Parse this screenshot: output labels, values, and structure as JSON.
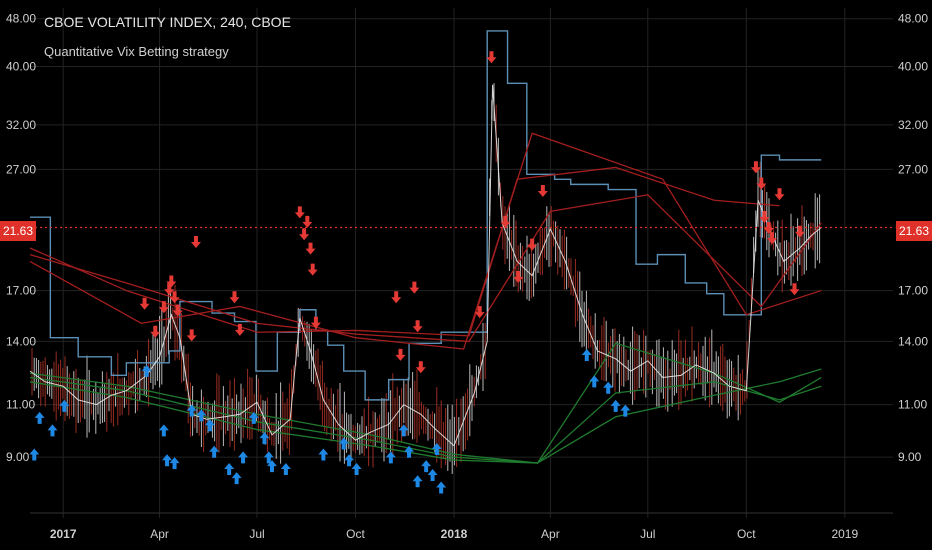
{
  "header": {
    "title": "CBOE VOLATILITY INDEX, 240, CBOE",
    "subtitle": "Quantitative Vix Betting strategy"
  },
  "colors": {
    "background": "#000000",
    "grid": "#222222",
    "candle_up": "#e8e8e8",
    "candle_down": "#c0392b",
    "buy_arrow": "#1e88e5",
    "sell_arrow": "#e53935",
    "step_line": "#5b8fb5",
    "ma_red": "#a31e1e",
    "ma_green": "#1f7a2e",
    "current_price_line": "#e0302a"
  },
  "current_price": {
    "value": 21.63,
    "label": "21.63"
  },
  "chart_data": {
    "type": "line",
    "y_scale": "log",
    "ylim": [
      8.0,
      50.0
    ],
    "y_ticks": [
      {
        "value": 9.0,
        "label": "9.00"
      },
      {
        "value": 11.0,
        "label": "11.00"
      },
      {
        "value": 14.0,
        "label": "14.00"
      },
      {
        "value": 17.0,
        "label": "17.00"
      },
      {
        "value": 21.63,
        "label": "21.63"
      },
      {
        "value": 27.0,
        "label": "27.00"
      },
      {
        "value": 32.0,
        "label": "32.00"
      },
      {
        "value": 40.0,
        "label": "40.00"
      },
      {
        "value": 48.0,
        "label": "48.00"
      }
    ],
    "xlim": [
      "2016-12-01",
      "2019-02-15"
    ],
    "x_ticks": [
      {
        "date": "2017-01-01",
        "label": "2017",
        "bold": true
      },
      {
        "date": "2017-04-01",
        "label": "Apr",
        "bold": false
      },
      {
        "date": "2017-07-01",
        "label": "Jul",
        "bold": false
      },
      {
        "date": "2017-10-01",
        "label": "Oct",
        "bold": false
      },
      {
        "date": "2018-01-01",
        "label": "2018",
        "bold": true
      },
      {
        "date": "2018-04-01",
        "label": "Apr",
        "bold": false
      },
      {
        "date": "2018-07-01",
        "label": "Jul",
        "bold": false
      },
      {
        "date": "2018-10-01",
        "label": "Oct",
        "bold": false
      },
      {
        "date": "2019-01-01",
        "label": "2019",
        "bold": false
      }
    ],
    "series": [
      {
        "kind": "price",
        "x": [
          "2016-12-01",
          "2016-12-15",
          "2017-01-01",
          "2017-01-15",
          "2017-02-01",
          "2017-02-15",
          "2017-03-01",
          "2017-03-20",
          "2017-04-01",
          "2017-04-12",
          "2017-04-20",
          "2017-05-01",
          "2017-05-15",
          "2017-06-01",
          "2017-06-15",
          "2017-07-01",
          "2017-07-15",
          "2017-08-01",
          "2017-08-10",
          "2017-08-20",
          "2017-09-01",
          "2017-09-15",
          "2017-10-01",
          "2017-10-15",
          "2017-11-01",
          "2017-11-15",
          "2017-12-01",
          "2017-12-15",
          "2018-01-01",
          "2018-01-20",
          "2018-02-01",
          "2018-02-06",
          "2018-02-15",
          "2018-03-01",
          "2018-03-15",
          "2018-04-01",
          "2018-04-15",
          "2018-05-01",
          "2018-05-15",
          "2018-06-01",
          "2018-06-15",
          "2018-07-01",
          "2018-07-15",
          "2018-08-01",
          "2018-08-15",
          "2018-09-01",
          "2018-09-15",
          "2018-10-01",
          "2018-10-12",
          "2018-10-25",
          "2018-11-05",
          "2018-11-20",
          "2018-12-01",
          "2018-12-10"
        ],
        "values": [
          12.5,
          12.0,
          11.8,
          11.2,
          11.0,
          11.4,
          11.6,
          12.3,
          13.2,
          15.5,
          14.2,
          10.6,
          10.4,
          10.5,
          10.6,
          11.1,
          9.8,
          10.4,
          15.3,
          13.5,
          11.2,
          10.2,
          9.6,
          9.9,
          10.2,
          11.0,
          10.6,
          10.0,
          9.4,
          11.5,
          14.0,
          37.3,
          22.0,
          19.0,
          18.0,
          21.5,
          19.0,
          15.5,
          13.5,
          13.1,
          12.5,
          13.0,
          12.2,
          12.3,
          12.8,
          12.4,
          11.8,
          11.6,
          24.0,
          21.0,
          19.0,
          20.0,
          21.0,
          21.63
        ]
      },
      {
        "kind": "step",
        "x": [
          "2016-12-01",
          "2016-12-20",
          "2017-01-15",
          "2017-02-15",
          "2017-03-01",
          "2017-04-10",
          "2017-04-20",
          "2017-05-20",
          "2017-06-10",
          "2017-06-30",
          "2017-07-20",
          "2017-08-10",
          "2017-08-25",
          "2017-09-05",
          "2017-09-20",
          "2017-10-10",
          "2017-11-01",
          "2017-11-20",
          "2017-12-20",
          "2018-01-15",
          "2018-02-01",
          "2018-02-20",
          "2018-03-10",
          "2018-04-05",
          "2018-04-20",
          "2018-05-10",
          "2018-05-25",
          "2018-06-20",
          "2018-07-10",
          "2018-08-05",
          "2018-08-25",
          "2018-09-10",
          "2018-09-30",
          "2018-10-15",
          "2018-11-01",
          "2018-12-10"
        ],
        "values": [
          22.5,
          14.2,
          13.2,
          12.3,
          12.9,
          13.5,
          16.3,
          15.6,
          15.1,
          12.5,
          14.5,
          15.8,
          14.6,
          13.8,
          12.5,
          11.2,
          12.1,
          13.9,
          14.5,
          14.5,
          45.8,
          37.5,
          26.5,
          26.0,
          25.5,
          25.5,
          25.0,
          18.8,
          19.5,
          17.5,
          16.8,
          15.5,
          15.5,
          28.5,
          28.0,
          28.0
        ]
      },
      {
        "kind": "ma_red",
        "x": [
          "2016-12-01",
          "2017-03-01",
          "2017-07-01",
          "2017-10-01",
          "2018-01-15",
          "2018-03-01",
          "2018-06-01",
          "2018-09-01",
          "2018-11-01"
        ],
        "values": [
          20.0,
          17.0,
          14.5,
          14.6,
          14.3,
          26.0,
          27.2,
          24.0,
          23.5
        ]
      },
      {
        "kind": "ma_red",
        "x": [
          "2016-12-01",
          "2017-03-01",
          "2017-07-01",
          "2017-10-01",
          "2018-01-15",
          "2018-04-01",
          "2018-07-01",
          "2018-10-15",
          "2018-12-10"
        ],
        "values": [
          19.5,
          17.5,
          15.0,
          14.4,
          14.0,
          23.0,
          24.5,
          16.0,
          22.0
        ]
      },
      {
        "kind": "ma_red",
        "x": [
          "2016-12-01",
          "2017-03-15",
          "2017-06-15",
          "2017-10-01",
          "2018-01-10",
          "2018-03-15",
          "2018-07-15",
          "2018-10-01",
          "2018-12-10"
        ],
        "values": [
          19.0,
          15.0,
          16.0,
          14.2,
          13.6,
          31.0,
          26.0,
          15.5,
          17.0
        ]
      },
      {
        "kind": "ma_green",
        "x": [
          "2016-12-01",
          "2017-03-01",
          "2017-07-01",
          "2017-10-15",
          "2018-01-01",
          "2018-03-20",
          "2018-06-01",
          "2018-09-01",
          "2018-11-01",
          "2018-12-10"
        ],
        "values": [
          12.4,
          11.8,
          10.6,
          9.8,
          9.1,
          8.8,
          13.9,
          12.4,
          11.1,
          12.2
        ]
      },
      {
        "kind": "ma_green",
        "x": [
          "2016-12-01",
          "2017-03-01",
          "2017-07-01",
          "2017-10-15",
          "2018-01-01",
          "2018-03-20",
          "2018-06-01",
          "2018-09-01",
          "2018-11-01",
          "2018-12-10"
        ],
        "values": [
          12.2,
          11.6,
          10.3,
          9.6,
          9.0,
          8.8,
          11.5,
          12.0,
          11.2,
          11.8
        ]
      },
      {
        "kind": "ma_green",
        "x": [
          "2016-12-01",
          "2017-03-01",
          "2017-07-01",
          "2017-10-15",
          "2018-01-01",
          "2018-03-20",
          "2018-06-01",
          "2018-09-01",
          "2018-11-01",
          "2018-12-10"
        ],
        "values": [
          12.0,
          11.3,
          10.0,
          9.4,
          8.9,
          8.8,
          10.5,
          11.4,
          12.0,
          12.6
        ]
      }
    ],
    "buy_signals": [
      {
        "x": "2016-12-05",
        "y": 9.3
      },
      {
        "x": "2016-12-10",
        "y": 10.7
      },
      {
        "x": "2016-12-22",
        "y": 10.2
      },
      {
        "x": "2017-01-02",
        "y": 11.2
      },
      {
        "x": "2017-03-20",
        "y": 12.8
      },
      {
        "x": "2017-04-05",
        "y": 10.2
      },
      {
        "x": "2017-04-08",
        "y": 9.1
      },
      {
        "x": "2017-04-15",
        "y": 9.0
      },
      {
        "x": "2017-05-01",
        "y": 11.0
      },
      {
        "x": "2017-05-10",
        "y": 10.8
      },
      {
        "x": "2017-05-18",
        "y": 10.4
      },
      {
        "x": "2017-05-22",
        "y": 9.4
      },
      {
        "x": "2017-06-05",
        "y": 8.8
      },
      {
        "x": "2017-06-12",
        "y": 8.5
      },
      {
        "x": "2017-06-18",
        "y": 9.2
      },
      {
        "x": "2017-06-28",
        "y": 10.7
      },
      {
        "x": "2017-07-08",
        "y": 9.9
      },
      {
        "x": "2017-07-12",
        "y": 9.2
      },
      {
        "x": "2017-07-15",
        "y": 8.9
      },
      {
        "x": "2017-07-28",
        "y": 8.8
      },
      {
        "x": "2017-09-01",
        "y": 9.3
      },
      {
        "x": "2017-09-20",
        "y": 9.7
      },
      {
        "x": "2017-09-25",
        "y": 9.1
      },
      {
        "x": "2017-10-02",
        "y": 8.8
      },
      {
        "x": "2017-11-03",
        "y": 9.2
      },
      {
        "x": "2017-11-15",
        "y": 10.2
      },
      {
        "x": "2017-11-20",
        "y": 9.4
      },
      {
        "x": "2017-11-28",
        "y": 8.4
      },
      {
        "x": "2017-12-06",
        "y": 8.9
      },
      {
        "x": "2017-12-12",
        "y": 8.6
      },
      {
        "x": "2017-12-16",
        "y": 9.5
      },
      {
        "x": "2017-12-20",
        "y": 8.2
      },
      {
        "x": "2018-05-05",
        "y": 13.6
      },
      {
        "x": "2018-05-12",
        "y": 12.3
      },
      {
        "x": "2018-05-25",
        "y": 12.0
      },
      {
        "x": "2018-06-01",
        "y": 11.2
      },
      {
        "x": "2018-06-10",
        "y": 11.0
      }
    ],
    "sell_signals": [
      {
        "x": "2017-03-18",
        "y": 15.8
      },
      {
        "x": "2017-03-28",
        "y": 14.2
      },
      {
        "x": "2017-04-05",
        "y": 15.6
      },
      {
        "x": "2017-04-10",
        "y": 16.7
      },
      {
        "x": "2017-04-12",
        "y": 17.2
      },
      {
        "x": "2017-04-15",
        "y": 16.2
      },
      {
        "x": "2017-04-18",
        "y": 15.4
      },
      {
        "x": "2017-05-01",
        "y": 14.0
      },
      {
        "x": "2017-05-05",
        "y": 20.0
      },
      {
        "x": "2017-06-10",
        "y": 16.2
      },
      {
        "x": "2017-06-15",
        "y": 14.3
      },
      {
        "x": "2017-08-10",
        "y": 22.4
      },
      {
        "x": "2017-08-14",
        "y": 20.6
      },
      {
        "x": "2017-08-17",
        "y": 21.6
      },
      {
        "x": "2017-08-20",
        "y": 19.5
      },
      {
        "x": "2017-08-22",
        "y": 18.0
      },
      {
        "x": "2017-08-25",
        "y": 14.7
      },
      {
        "x": "2017-11-08",
        "y": 16.2
      },
      {
        "x": "2017-11-12",
        "y": 13.0
      },
      {
        "x": "2017-11-25",
        "y": 16.8
      },
      {
        "x": "2017-11-28",
        "y": 14.5
      },
      {
        "x": "2017-12-01",
        "y": 12.4
      },
      {
        "x": "2018-01-25",
        "y": 15.3
      },
      {
        "x": "2018-02-05",
        "y": 40.5
      },
      {
        "x": "2018-02-18",
        "y": 21.6
      },
      {
        "x": "2018-03-02",
        "y": 17.5
      },
      {
        "x": "2018-03-15",
        "y": 19.8
      },
      {
        "x": "2018-03-25",
        "y": 24.3
      },
      {
        "x": "2018-10-10",
        "y": 26.6
      },
      {
        "x": "2018-10-15",
        "y": 25.0
      },
      {
        "x": "2018-10-18",
        "y": 22.0
      },
      {
        "x": "2018-10-22",
        "y": 21.1
      },
      {
        "x": "2018-10-25",
        "y": 20.3
      },
      {
        "x": "2018-11-01",
        "y": 24.0
      },
      {
        "x": "2018-11-15",
        "y": 16.7
      },
      {
        "x": "2018-11-20",
        "y": 20.8
      }
    ]
  }
}
